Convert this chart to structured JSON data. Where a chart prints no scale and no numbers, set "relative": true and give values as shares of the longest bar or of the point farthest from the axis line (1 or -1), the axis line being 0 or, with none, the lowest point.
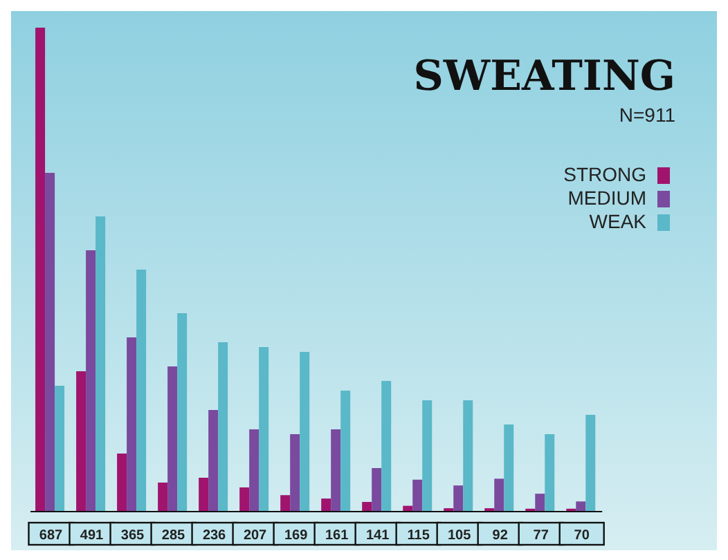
{
  "chart_data": {
    "type": "bar",
    "title": "SWEATING",
    "subtitle": "N=911",
    "relative": true,
    "categories": [
      "687",
      "491",
      "365",
      "285",
      "236",
      "207",
      "169",
      "161",
      "141",
      "115",
      "105",
      "92",
      "77",
      "70"
    ],
    "series": [
      {
        "name": "STRONG",
        "color": "#a0146e",
        "values": [
          1,
          0.29,
          0.12,
          0.06,
          0.07,
          0.05,
          0.034,
          0.027,
          0.02,
          0.012,
          0.007,
          0.007,
          0.006,
          0.006
        ]
      },
      {
        "name": "MEDIUM",
        "color": "#7a4a9e",
        "values": [
          0.7,
          0.54,
          0.36,
          0.3,
          0.21,
          0.17,
          0.16,
          0.17,
          0.09,
          0.066,
          0.054,
          0.068,
          0.037,
          0.021
        ]
      },
      {
        "name": "WEAK",
        "color": "#5ab8c8",
        "values": [
          0.26,
          0.61,
          0.5,
          0.41,
          0.35,
          0.34,
          0.33,
          0.25,
          0.27,
          0.23,
          0.23,
          0.18,
          0.16,
          0.2
        ]
      }
    ],
    "legend": "top right",
    "grid": false
  }
}
